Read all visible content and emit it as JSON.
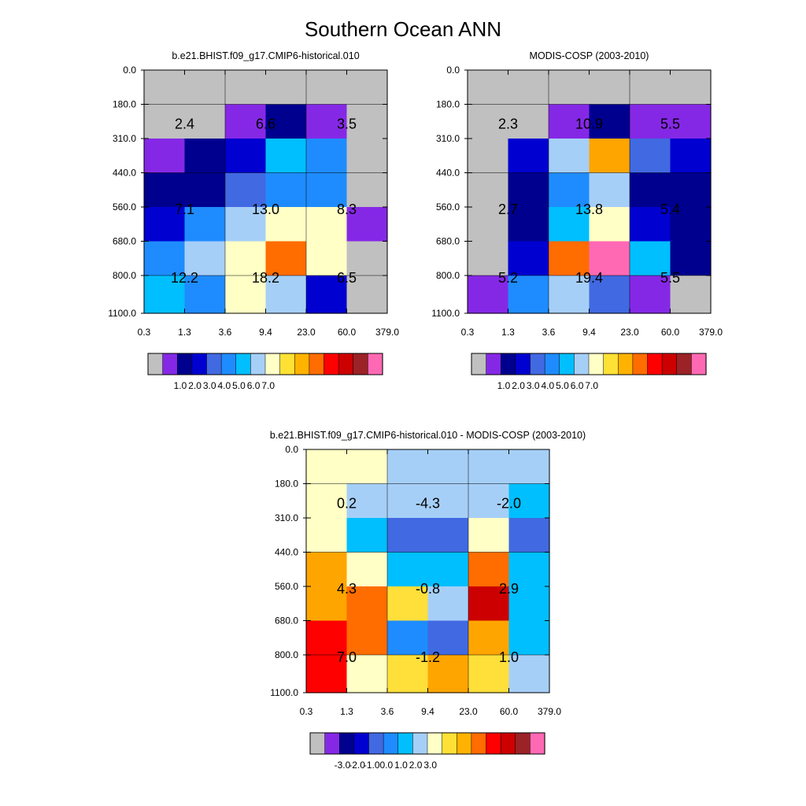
{
  "figure_title": "Southern Ocean ANN",
  "chart_data": [
    {
      "type": "heatmap",
      "title": "b.e21.BHIST.f09_g17.CMIP6-historical.010",
      "xlabel": "",
      "ylabel": "",
      "x_tick_labels": [
        "0.3",
        "1.3",
        "3.6",
        "9.4",
        "23.0",
        "60.0",
        "379.0"
      ],
      "y_tick_labels": [
        "0.0",
        "180.0",
        "310.0",
        "440.0",
        "560.0",
        "680.0",
        "800.0",
        "1100.0"
      ],
      "cell_color_index": [
        [
          0,
          0,
          0,
          0,
          0,
          0
        ],
        [
          0,
          0,
          1,
          2,
          1,
          0
        ],
        [
          1,
          2,
          3,
          7,
          6,
          0
        ],
        [
          2,
          2,
          4,
          6,
          6,
          0
        ],
        [
          3,
          6,
          8,
          9,
          9,
          1
        ],
        [
          6,
          8,
          9,
          13,
          9,
          0
        ],
        [
          7,
          6,
          9,
          8,
          3,
          0
        ]
      ],
      "annotations": [
        [
          "2.4",
          "6.6",
          "3.5"
        ],
        [
          "7.1",
          "13.0",
          "8.3"
        ],
        [
          "12.2",
          "18.2",
          "6.5"
        ]
      ],
      "colorbar_labels": [
        "1.0",
        "2.0",
        "3.0",
        "4.0",
        "5.0",
        "6.0",
        "7.0"
      ]
    },
    {
      "type": "heatmap",
      "title": "MODIS-COSP (2003-2010)",
      "xlabel": "",
      "ylabel": "",
      "x_tick_labels": [
        "0.3",
        "1.3",
        "3.6",
        "9.4",
        "23.0",
        "60.0",
        "379.0"
      ],
      "y_tick_labels": [
        "0.0",
        "180.0",
        "310.0",
        "440.0",
        "560.0",
        "680.0",
        "800.0",
        "1100.0"
      ],
      "cell_color_index": [
        [
          0,
          0,
          0,
          0,
          0,
          0
        ],
        [
          0,
          0,
          1,
          2,
          1,
          1
        ],
        [
          0,
          3,
          8,
          12,
          5,
          3
        ],
        [
          0,
          2,
          6,
          8,
          2,
          2
        ],
        [
          0,
          2,
          7,
          9,
          3,
          2
        ],
        [
          0,
          3,
          13,
          16,
          7,
          2
        ],
        [
          1,
          6,
          8,
          5,
          1,
          0
        ]
      ],
      "annotations": [
        [
          "2.3",
          "10.9",
          "5.5"
        ],
        [
          "2.7",
          "13.8",
          "5.4"
        ],
        [
          "5.2",
          "19.4",
          "5.5"
        ]
      ],
      "colorbar_labels": [
        "1.0",
        "2.0",
        "3.0",
        "4.0",
        "5.0",
        "6.0",
        "7.0"
      ]
    },
    {
      "type": "heatmap",
      "title": "b.e21.BHIST.f09_g17.CMIP6-historical.010 - MODIS-COSP (2003-2010)",
      "xlabel": "",
      "ylabel": "",
      "x_tick_labels": [
        "0.3",
        "1.3",
        "3.6",
        "9.4",
        "23.0",
        "60.0",
        "379.0"
      ],
      "y_tick_labels": [
        "0.0",
        "180.0",
        "310.0",
        "440.0",
        "560.0",
        "680.0",
        "800.0",
        "1100.0"
      ],
      "cell_color_index": [
        [
          9,
          9,
          8,
          8,
          8,
          8
        ],
        [
          9,
          8,
          8,
          8,
          8,
          7
        ],
        [
          9,
          7,
          5,
          5,
          9,
          5
        ],
        [
          12,
          9,
          7,
          7,
          13,
          7
        ],
        [
          12,
          13,
          10,
          8,
          15,
          7
        ],
        [
          14,
          13,
          6,
          5,
          12,
          7
        ],
        [
          14,
          9,
          10,
          12,
          10,
          8
        ]
      ],
      "annotations": [
        [
          "0.2",
          "-4.3",
          "-2.0"
        ],
        [
          "4.3",
          "-0.8",
          "2.9"
        ],
        [
          "7.0",
          "-1.2",
          "1.0"
        ]
      ],
      "colorbar_labels": [
        "-3.0",
        "-2.0",
        "-1.0",
        "0.0",
        "1.0",
        "2.0",
        "3.0"
      ]
    }
  ],
  "palette": [
    "#bebebe",
    "#8a2be2",
    "#00008b",
    "#0000cd",
    "#4169e1",
    "#1e90ff",
    "#00bfff",
    "#a0d0ff",
    "#ffffc8",
    "#ffff00",
    "#ffd700",
    "#ffa500",
    "#ff6600",
    "#ff0000",
    "#cd0000",
    "#a52a2a",
    "#ff69b4"
  ]
}
